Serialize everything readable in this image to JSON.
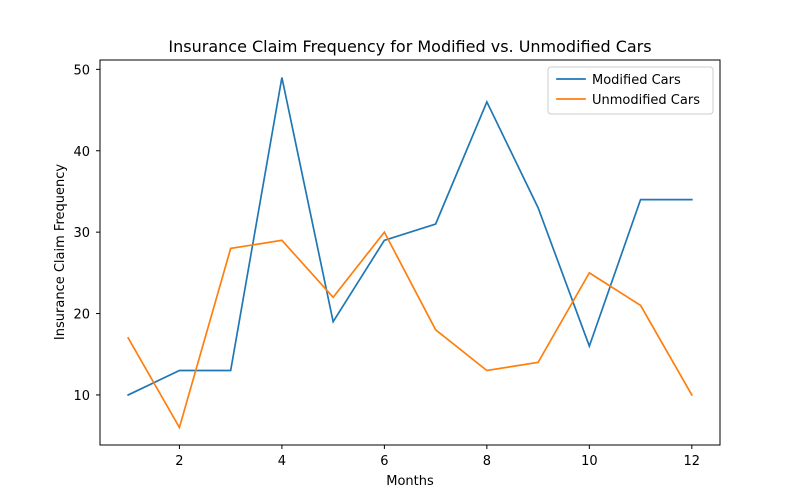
{
  "chart_data": {
    "type": "line",
    "title": "Insurance Claim Frequency for Modified vs. Unmodified Cars",
    "xlabel": "Months",
    "ylabel": "Insurance Claim Frequency",
    "x": [
      1,
      2,
      3,
      4,
      5,
      6,
      7,
      8,
      9,
      10,
      11,
      12
    ],
    "xticks": [
      2,
      4,
      6,
      8,
      10,
      12
    ],
    "yticks": [
      10,
      20,
      30,
      40,
      50
    ],
    "xlim": [
      0.45,
      12.55
    ],
    "ylim": [
      3.85,
      51.15
    ],
    "grid": false,
    "legend": "top-right",
    "series": [
      {
        "name": "Modified Cars",
        "color": "#1f77b4",
        "values": [
          10,
          13,
          13,
          49,
          19,
          29,
          31,
          46,
          33,
          16,
          34,
          34
        ]
      },
      {
        "name": "Unmodified Cars",
        "color": "#ff7f0e",
        "values": [
          17,
          6,
          28,
          29,
          22,
          30,
          18,
          13,
          14,
          25,
          21,
          10
        ]
      }
    ]
  }
}
